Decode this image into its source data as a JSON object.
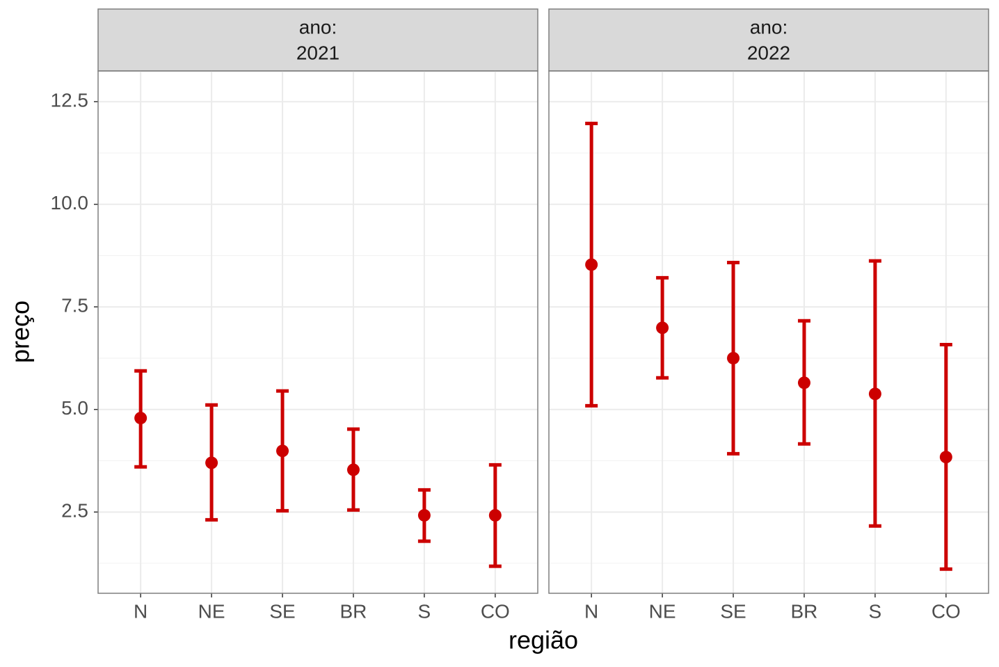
{
  "chart_data": [
    {
      "type": "errorbar",
      "strip": [
        "ano:",
        "2021"
      ],
      "xlabel": "região",
      "ylabel": "preço",
      "color": "#cc0000",
      "grid": true,
      "categories": [
        "N",
        "NE",
        "SE",
        "BR",
        "S",
        "CO"
      ],
      "values": [
        4.79,
        3.7,
        3.99,
        3.53,
        2.42,
        2.42
      ],
      "lower": [
        3.6,
        2.31,
        2.53,
        2.55,
        1.79,
        1.18
      ],
      "upper": [
        5.94,
        5.11,
        5.45,
        4.52,
        3.04,
        3.65
      ],
      "ylim": [
        0.52,
        13.25
      ],
      "yticks": [
        {
          "value": 2.5,
          "label": "2.5"
        },
        {
          "value": 5,
          "label": "5.0"
        },
        {
          "value": 7.5,
          "label": "7.5"
        },
        {
          "value": 10,
          "label": "10.0"
        },
        {
          "value": 12.5,
          "label": "12.5"
        }
      ]
    },
    {
      "type": "errorbar",
      "strip": [
        "ano:",
        "2022"
      ],
      "color": "#cc0000",
      "grid": true,
      "categories": [
        "N",
        "NE",
        "SE",
        "BR",
        "S",
        "CO"
      ],
      "values": [
        8.53,
        6.99,
        6.25,
        5.65,
        5.38,
        3.84
      ],
      "lower": [
        5.09,
        5.77,
        3.92,
        4.16,
        2.16,
        1.11
      ],
      "upper": [
        11.97,
        8.21,
        8.58,
        7.16,
        8.62,
        6.58
      ],
      "ylim": [
        0.52,
        13.25
      ],
      "yticks": [
        2.5,
        5,
        7.5,
        10,
        12.5
      ]
    }
  ]
}
